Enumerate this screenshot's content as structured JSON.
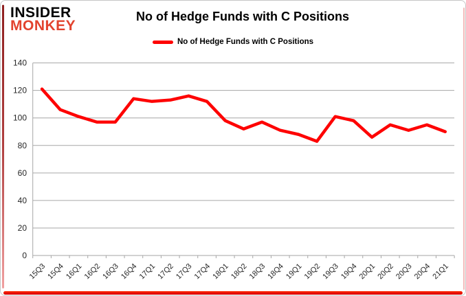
{
  "brand": {
    "line1": "INSIDER",
    "line2": "MONKEY",
    "accent_color": "#e2432e"
  },
  "header": {
    "title": "No of Hedge Funds with C Positions"
  },
  "legend": {
    "label": "No of Hedge Funds with C Positions",
    "color": "#fe0000"
  },
  "chart_data": {
    "type": "line",
    "title": "No of Hedge Funds with C Positions",
    "categories": [
      "15Q3",
      "15Q4",
      "16Q1",
      "16Q2",
      "16Q3",
      "16Q4",
      "17Q1",
      "17Q2",
      "17Q3",
      "17Q4",
      "18Q1",
      "18Q2",
      "18Q3",
      "18Q4",
      "19Q1",
      "19Q2",
      "19Q3",
      "19Q4",
      "20Q1",
      "20Q2",
      "20Q3",
      "20Q4",
      "21Q1"
    ],
    "series": [
      {
        "name": "No of Hedge Funds with C Positions",
        "values": [
          121,
          106,
          101,
          97,
          97,
          114,
          112,
          113,
          116,
          112,
          98,
          92,
          97,
          91,
          88,
          83,
          101,
          98,
          86,
          95,
          91,
          95,
          90
        ]
      }
    ],
    "xlabel": "",
    "ylabel": "",
    "ylim": [
      0,
      140
    ],
    "ytick_step": 20,
    "grid": true,
    "legend_position": "top-center",
    "line_color": "#fe0000",
    "grid_color": "#a6a6a6",
    "axis_text_color": "#262626",
    "background_color": "#ffffff"
  }
}
